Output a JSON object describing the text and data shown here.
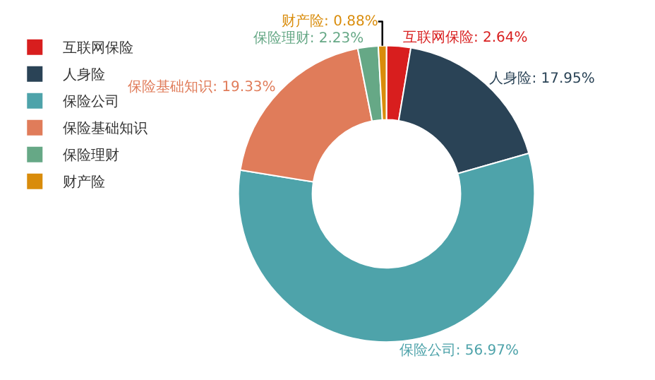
{
  "chart_data": {
    "type": "donut",
    "categories": [
      "互联网保险",
      "人身险",
      "保险公司",
      "保险基础知识",
      "保险理财",
      "财产险"
    ],
    "values": [
      2.64,
      17.95,
      56.97,
      19.33,
      2.23,
      0.88
    ],
    "value_labels": [
      "互联网保险: 2.64%",
      "人身险: 17.95%",
      "保险公司: 56.97%",
      "保险基础知识: 19.33%",
      "保险理财: 2.23%",
      "财产险: 0.88%"
    ],
    "colors": [
      "#d81e1e",
      "#2a4356",
      "#4ea3aa",
      "#e07c5a",
      "#66a886",
      "#d98c0b"
    ],
    "legend": "top left"
  }
}
